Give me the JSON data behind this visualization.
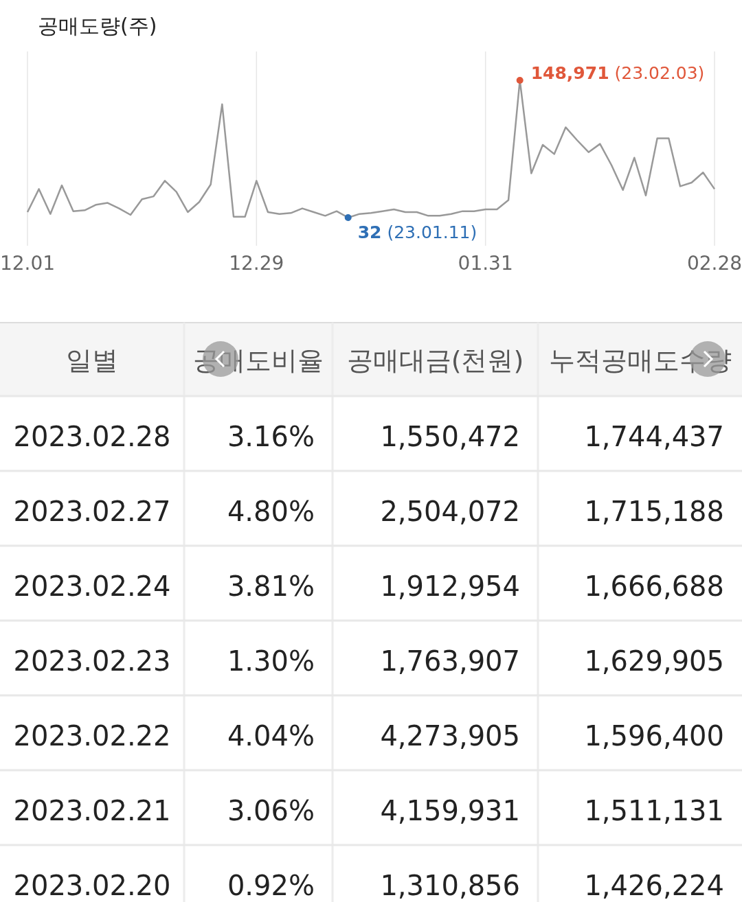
{
  "chart_data": [
    {
      "type": "line",
      "ylabel": "공매도량(주)",
      "grid": "x",
      "marker": "none",
      "line_style": "solid",
      "categories": [
        "12.01",
        null,
        null,
        null,
        null,
        null,
        null,
        null,
        null,
        null,
        null,
        null,
        null,
        null,
        null,
        null,
        null,
        null,
        null,
        null,
        "12.29",
        null,
        null,
        null,
        null,
        null,
        null,
        null,
        null,
        null,
        null,
        null,
        null,
        null,
        null,
        null,
        null,
        null,
        null,
        null,
        "01.31",
        null,
        null,
        null,
        null,
        null,
        null,
        null,
        null,
        null,
        null,
        null,
        null,
        null,
        null,
        null,
        null,
        null,
        null,
        null,
        "02.28"
      ],
      "series": [
        {
          "color": "#999999",
          "values": [
            6000,
            31000,
            4000,
            35000,
            7000,
            8000,
            14000,
            16000,
            10000,
            3000,
            20000,
            23000,
            40000,
            28000,
            6000,
            17000,
            36000,
            123000,
            1000,
            1000,
            40000,
            6000,
            4000,
            5000,
            10000,
            6000,
            2000,
            7000,
            32,
            4000,
            5000,
            7000,
            9000,
            6000,
            6000,
            2000,
            2000,
            4000,
            7000,
            7000,
            9000,
            9000,
            19000,
            148971,
            48000,
            79000,
            69000,
            98000,
            84000,
            71000,
            80000,
            57000,
            30000,
            65000,
            24000,
            86000,
            86000,
            34000,
            38000,
            49000,
            31000
          ],
          "colors": [
            null,
            null,
            null,
            null,
            null,
            null,
            null,
            null,
            null,
            null,
            null,
            null,
            null,
            null,
            null,
            null,
            null,
            null,
            null,
            null,
            null,
            null,
            null,
            null,
            null,
            null,
            null,
            null,
            "#2e6fb5",
            null,
            null,
            null,
            null,
            null,
            null,
            null,
            null,
            null,
            null,
            null,
            null,
            null,
            null,
            "#e0573a",
            null,
            null,
            null,
            null,
            null,
            null,
            null,
            null,
            null,
            null,
            null,
            null,
            null,
            null,
            null,
            null,
            null
          ],
          "value_labels": [
            null,
            null,
            null,
            null,
            null,
            null,
            null,
            null,
            null,
            null,
            null,
            null,
            null,
            null,
            null,
            null,
            null,
            null,
            null,
            null,
            null,
            null,
            null,
            null,
            null,
            null,
            null,
            null,
            "32 (23.01.11)",
            null,
            null,
            null,
            null,
            null,
            null,
            null,
            null,
            null,
            null,
            null,
            null,
            null,
            null,
            "148,971 (23.02.03)",
            null,
            null,
            null,
            null,
            null,
            null,
            null,
            null,
            null,
            null,
            null,
            null,
            null,
            null,
            null,
            null,
            null
          ]
        }
      ]
    },
    {
      "type": "other",
      "categories": [
        "일별",
        "공매도비율",
        "공매대금(천원)",
        "누적공매도수량"
      ],
      "cell_labels": [
        [
          "2023.02.28",
          "3.16%",
          "1,550,472",
          "1,744,437"
        ],
        [
          "2023.02.27",
          "4.80%",
          "2,504,072",
          "1,715,188"
        ],
        [
          "2023.02.24",
          "3.81%",
          "1,912,954",
          "1,666,688"
        ],
        [
          "2023.02.23",
          "1.30%",
          "1,763,907",
          "1,629,905"
        ],
        [
          "2023.02.22",
          "4.04%",
          "4,273,905",
          "1,596,400"
        ],
        [
          "2023.02.21",
          "3.06%",
          "4,159,931",
          "1,511,131"
        ],
        [
          "2023.02.20",
          "0.92%",
          "1,310,856",
          "1,426,224"
        ]
      ]
    }
  ]
}
